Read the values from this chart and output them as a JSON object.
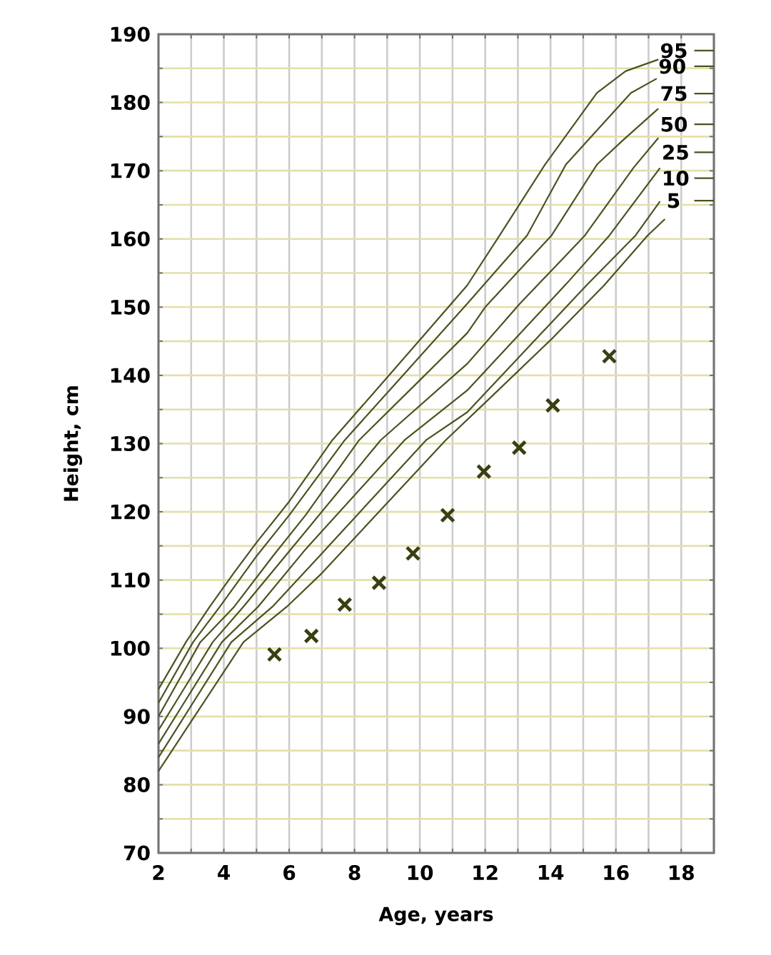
{
  "chart_data": {
    "type": "line",
    "xlabel": "Age, years",
    "ylabel": "Height, cm",
    "xlim": [
      2,
      19
    ],
    "ylim": [
      70,
      190
    ],
    "xticks": [
      2,
      {
        "value": 3,
        "label": null
      },
      4,
      {
        "value": 5,
        "label": null
      },
      6,
      {
        "value": 7,
        "label": null
      },
      8,
      {
        "value": 9,
        "label": null
      },
      10,
      {
        "value": 11,
        "label": null
      },
      12,
      {
        "value": 13,
        "label": null
      },
      14,
      {
        "value": 15,
        "label": null
      },
      16,
      {
        "value": 17,
        "label": null
      },
      18,
      {
        "value": 19,
        "label": null
      }
    ],
    "yticks": [
      70,
      {
        "value": 75,
        "label": null
      },
      80,
      {
        "value": 85,
        "label": null
      },
      90,
      {
        "value": 95,
        "label": null
      },
      100,
      {
        "value": 105,
        "label": null
      },
      110,
      {
        "value": 115,
        "label": null
      },
      120,
      {
        "value": 125,
        "label": null
      },
      130,
      {
        "value": 135,
        "label": null
      },
      140,
      {
        "value": 145,
        "label": null
      },
      150,
      {
        "value": 155,
        "label": null
      },
      160,
      {
        "value": 165,
        "label": null
      },
      170,
      {
        "value": 175,
        "label": null
      },
      180,
      {
        "value": 185,
        "label": null
      },
      190
    ],
    "grid": true,
    "series": [
      {
        "name": "95",
        "type": "line",
        "color": "#4b5320",
        "marker": "none",
        "x": [
          2,
          2.84,
          3.57,
          4.3,
          5,
          6,
          7.32,
          9,
          10,
          11.45,
          12.44,
          13.83,
          15.42,
          16.3,
          17.3,
          17.9,
          18.4,
          19
        ],
        "values": [
          94,
          100.9,
          106.1,
          111,
          115.5,
          121.5,
          130.5,
          139.7,
          145.2,
          153.2,
          160.5,
          170.9,
          181.4,
          184.6,
          186.3,
          null,
          187.6,
          187.6
        ]
      },
      {
        "name": "90",
        "type": "line",
        "color": "#4b5320",
        "marker": "none",
        "x": [
          2,
          3.06,
          3.88,
          5,
          6,
          7.7,
          9.5,
          11.45,
          13.28,
          14.47,
          16.46,
          17.25,
          17.9,
          18.4,
          19
        ],
        "values": [
          92,
          100.9,
          106.1,
          113.5,
          119.5,
          130.5,
          140.1,
          150.5,
          160.5,
          170.9,
          181.4,
          183.5,
          null,
          185.3,
          185.3
        ]
      },
      {
        "name": "75",
        "type": "line",
        "color": "#4b5320",
        "marker": "none",
        "x": [
          2,
          3.28,
          4.32,
          5.5,
          6.5,
          8.14,
          10,
          11.45,
          12,
          14.03,
          15.42,
          16.2,
          17.3,
          17.9,
          18.4,
          19
        ],
        "values": [
          90,
          100.9,
          106.1,
          113.5,
          119.5,
          130.5,
          139.3,
          146.2,
          150,
          160.5,
          170.9,
          174.4,
          179.1,
          null,
          181.3,
          181.3
        ]
      },
      {
        "name": "50",
        "type": "line",
        "color": "#4b5320",
        "marker": "none",
        "x": [
          2,
          3.66,
          4.6,
          6,
          8.8,
          11.45,
          13.06,
          15.05,
          16.55,
          17.3,
          17.9,
          18.4,
          19
        ],
        "values": [
          88,
          100.9,
          106.1,
          114.2,
          130.5,
          141.7,
          150.5,
          160.5,
          170.5,
          174.8,
          null,
          176.8,
          176.8
        ]
      },
      {
        "name": "25",
        "type": "line",
        "color": "#4b5320",
        "marker": "none",
        "x": [
          2,
          3.94,
          5.05,
          6.5,
          9.53,
          11.45,
          14.5,
          15.8,
          17.35,
          17.9,
          18.4,
          19
        ],
        "values": [
          86,
          100.9,
          106.1,
          114.5,
          130.5,
          137.8,
          153.5,
          160.5,
          170.4,
          null,
          172.7,
          172.7
        ]
      },
      {
        "name": "10",
        "type": "line",
        "color": "#4b5320",
        "marker": "none",
        "x": [
          2,
          4.23,
          5.49,
          7,
          10.19,
          11.45,
          15.1,
          16.6,
          17.35,
          17.9,
          18.4,
          19
        ],
        "values": [
          84,
          100.9,
          106.1,
          113.9,
          130.5,
          134.6,
          153.2,
          160.5,
          165.5,
          null,
          168.9,
          168.9
        ]
      },
      {
        "name": "5",
        "type": "line",
        "color": "#4b5320",
        "marker": "none",
        "x": [
          2,
          4.6,
          5.93,
          7,
          10.79,
          12,
          14.07,
          15.64,
          16.97,
          17.5,
          17.9,
          18.4,
          19
        ],
        "values": [
          82,
          100.9,
          106.1,
          111,
          130.5,
          136,
          145.5,
          153.2,
          160.5,
          162.9,
          null,
          165.6,
          165.6
        ]
      },
      {
        "type": "scatter",
        "color": "#3a3f12",
        "marker": "cross",
        "x": [
          5.55,
          6.68,
          7.7,
          8.75,
          9.79,
          10.85,
          11.96,
          13.04,
          14.07,
          15.8
        ],
        "values": [
          99.1,
          101.8,
          106.4,
          109.6,
          113.9,
          119.5,
          125.9,
          129.4,
          135.6,
          142.8
        ]
      }
    ]
  }
}
